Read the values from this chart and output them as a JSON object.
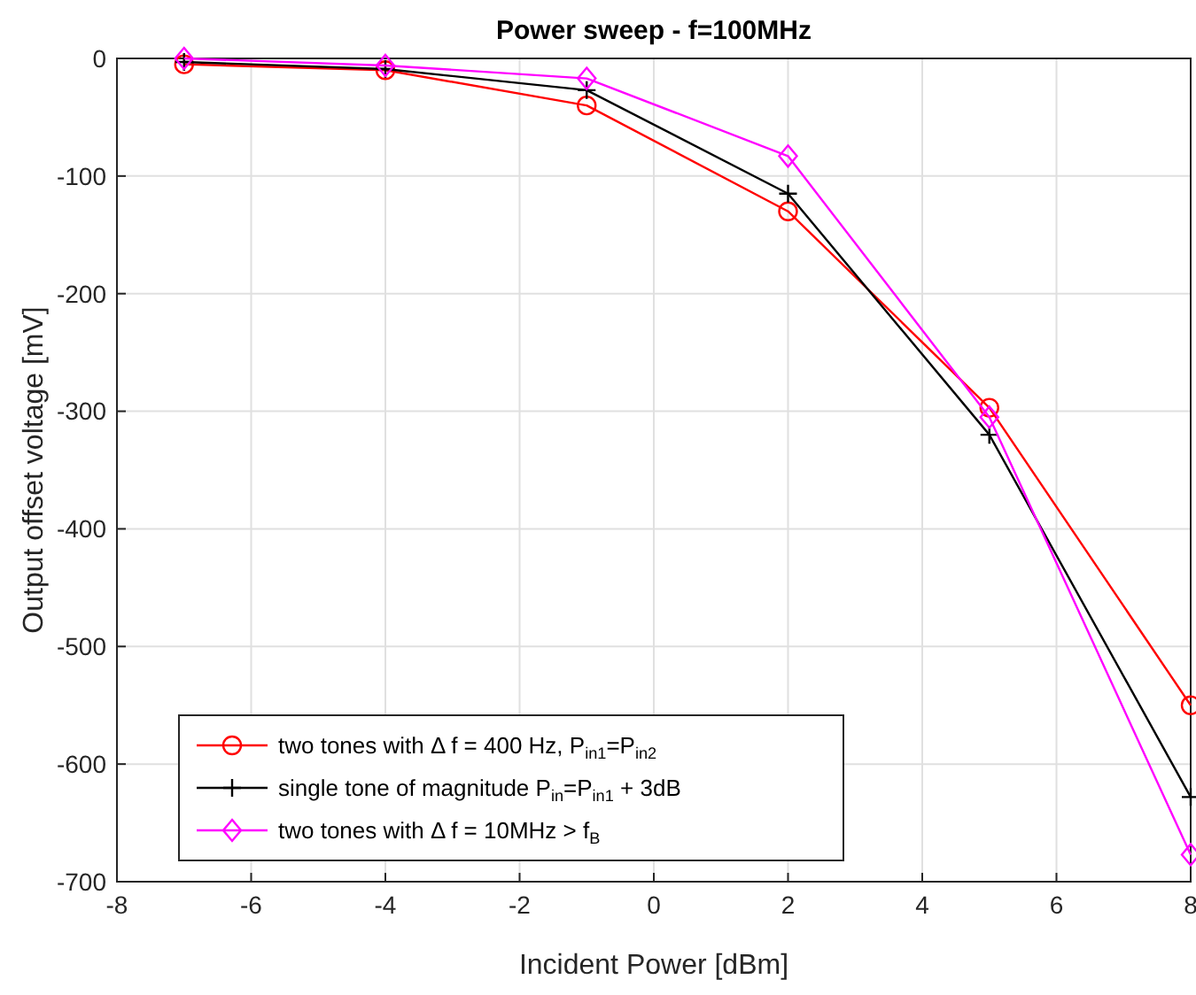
{
  "chart_data": {
    "type": "line",
    "title": "Power sweep - f=100MHz",
    "xlabel": "Incident Power [dBm]",
    "ylabel": "Output offset voltage [mV]",
    "x": [
      -7,
      -4,
      -1,
      2,
      5,
      8
    ],
    "series": [
      {
        "name": "two tones with Δ f = 400 Hz, P$_{in1}$=P$_{in2}$",
        "color": "#ff0000",
        "marker": "circle",
        "values": [
          -5,
          -10,
          -40,
          -130,
          -297,
          -550
        ]
      },
      {
        "name": "single tone of magnitude P$_{in}$=P$_{in1}$ + 3dB",
        "color": "#000000",
        "marker": "cross",
        "values": [
          -3,
          -9,
          -27,
          -115,
          -320,
          -628
        ]
      },
      {
        "name": "two tones with Δ f = 10MHz > f$_{B}$",
        "color": "#ff00ff",
        "marker": "diamond",
        "values": [
          0,
          -6,
          -17,
          -83,
          -305,
          -677
        ]
      }
    ],
    "xlim": [
      -8,
      8
    ],
    "xticks": [
      -8,
      -6,
      -4,
      -2,
      0,
      2,
      4,
      6,
      8
    ],
    "ylim": [
      -700,
      0
    ],
    "yticks": [
      -700,
      -600,
      -500,
      -400,
      -300,
      -200,
      -100,
      0
    ],
    "grid": true,
    "legend": "bottom left",
    "line_style": "solid"
  }
}
